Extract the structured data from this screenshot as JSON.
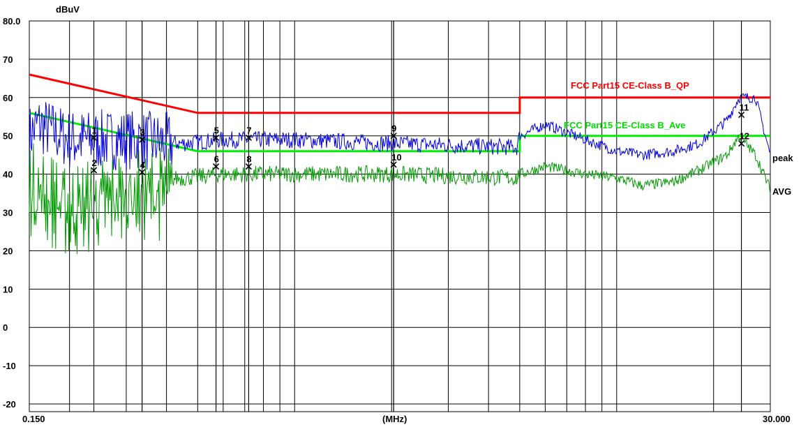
{
  "chart_data": {
    "type": "line",
    "y_unit": "dBuV",
    "x_unit": "(MHz)",
    "y_ticks": [
      "80.0",
      "70",
      "60",
      "50",
      "40",
      "30",
      "20",
      "10",
      "0",
      "-10",
      "-20"
    ],
    "y_values": [
      80,
      70,
      60,
      50,
      40,
      30,
      20,
      10,
      0,
      -10,
      -20
    ],
    "ylim": [
      -22,
      80
    ],
    "xlim": [
      0.15,
      30.0
    ],
    "x_scale": "log",
    "x_tick_labels": [
      "0.150",
      "30.000"
    ],
    "grid": true,
    "colors": {
      "qp_limit": "#ff0000",
      "avg_limit": "#00ee00",
      "peak": "#0000e0",
      "avg": "#009900"
    },
    "limits": [
      {
        "name": "FCC Part15 CE-Class B_QP",
        "color": "#ff0000",
        "points": [
          [
            0.15,
            66
          ],
          [
            0.5,
            56
          ],
          [
            5,
            56
          ],
          [
            5,
            60
          ],
          [
            30,
            60
          ]
        ]
      },
      {
        "name": "FCC Part15 CE-Class B_Ave",
        "color": "#00ee00",
        "points": [
          [
            0.15,
            56
          ],
          [
            0.5,
            46
          ],
          [
            5,
            46
          ],
          [
            5,
            50
          ],
          [
            30,
            50
          ]
        ]
      }
    ],
    "series": [
      {
        "name": "peak",
        "color": "#0000e0",
        "points": [
          [
            0.15,
            50
          ],
          [
            0.16,
            53
          ],
          [
            0.2,
            49
          ],
          [
            0.3,
            49
          ],
          [
            0.45,
            48
          ],
          [
            0.6,
            49
          ],
          [
            1,
            49
          ],
          [
            2,
            48
          ],
          [
            4.9,
            47
          ],
          [
            5,
            50
          ],
          [
            6,
            53
          ],
          [
            8,
            49
          ],
          [
            10,
            46
          ],
          [
            12,
            45
          ],
          [
            15,
            46
          ],
          [
            18,
            48
          ],
          [
            22,
            54
          ],
          [
            24,
            60
          ],
          [
            27,
            60
          ],
          [
            30,
            45
          ]
        ]
      },
      {
        "name": "AVG",
        "color": "#009900",
        "points": [
          [
            0.15,
            40
          ],
          [
            0.2,
            34
          ],
          [
            0.25,
            36
          ],
          [
            0.3,
            38
          ],
          [
            0.45,
            39
          ],
          [
            0.6,
            40
          ],
          [
            1,
            40
          ],
          [
            2,
            40
          ],
          [
            4.9,
            39
          ],
          [
            5,
            40
          ],
          [
            6,
            42
          ],
          [
            8,
            40
          ],
          [
            10,
            39
          ],
          [
            12,
            37
          ],
          [
            15,
            38
          ],
          [
            18,
            41
          ],
          [
            22,
            45
          ],
          [
            24,
            50
          ],
          [
            27,
            45
          ],
          [
            30,
            36
          ]
        ]
      }
    ],
    "markers": [
      {
        "label": "1",
        "x": 0.238,
        "y": 49.5
      },
      {
        "label": "2",
        "x": 0.238,
        "y": 41.0
      },
      {
        "label": "3",
        "x": 0.336,
        "y": 49.0
      },
      {
        "label": "4",
        "x": 0.336,
        "y": 40.5
      },
      {
        "label": "5",
        "x": 0.57,
        "y": 49.5
      },
      {
        "label": "6",
        "x": 0.57,
        "y": 42.0
      },
      {
        "label": "7",
        "x": 0.72,
        "y": 49.5
      },
      {
        "label": "8",
        "x": 0.72,
        "y": 42.0
      },
      {
        "label": "9",
        "x": 2.03,
        "y": 50.0
      },
      {
        "label": "10",
        "x": 2.03,
        "y": 42.5
      },
      {
        "label": "11",
        "x": 24.4,
        "y": 55.5
      },
      {
        "label": "12",
        "x": 24.4,
        "y": 48.0
      }
    ]
  }
}
